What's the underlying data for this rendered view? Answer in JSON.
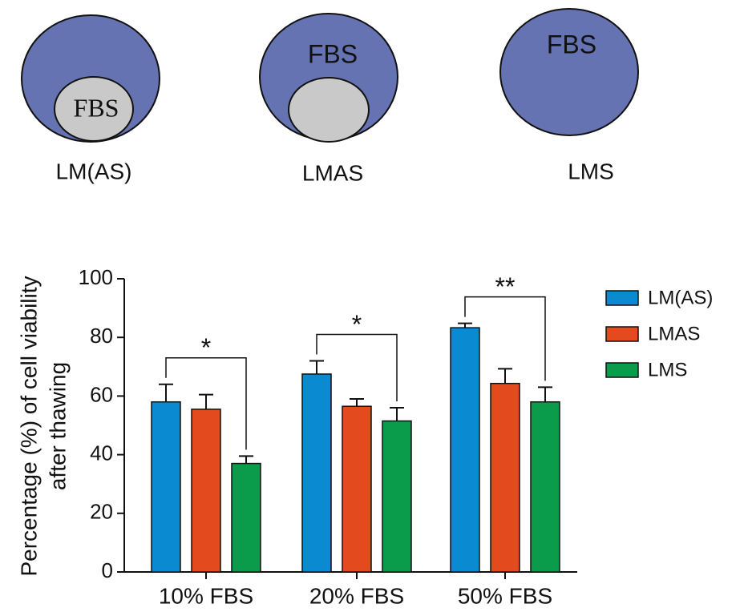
{
  "diagrams": [
    {
      "inner_text": "FBS",
      "label": "LM(AS)"
    },
    {
      "inner_text": "FBS",
      "label": "LMAS"
    },
    {
      "inner_text": "FBS",
      "label": "LMS"
    }
  ],
  "chart_data": {
    "type": "bar",
    "ylabel": [
      "Percentage (%) of cell viability",
      "after thawing"
    ],
    "categories": [
      "10% FBS",
      "20% FBS",
      "50% FBS"
    ],
    "series": [
      {
        "name": "LM(AS)",
        "color": "#0a8ad0",
        "values": [
          58,
          67.5,
          83.3
        ],
        "errors": [
          6,
          4.5,
          1.5
        ]
      },
      {
        "name": "LMAS",
        "color": "#e34a1d",
        "values": [
          55.5,
          56.5,
          64.3
        ],
        "errors": [
          5,
          2.5,
          5
        ]
      },
      {
        "name": "LMS",
        "color": "#0a9c4a",
        "values": [
          37,
          51.5,
          58
        ],
        "errors": [
          2.5,
          4.5,
          5
        ]
      }
    ],
    "significance": [
      {
        "category": 0,
        "from": 0,
        "to": 2,
        "text": "*"
      },
      {
        "category": 1,
        "from": 0,
        "to": 2,
        "text": "*"
      },
      {
        "category": 2,
        "from": 0,
        "to": 2,
        "text": "**"
      }
    ],
    "ylim": [
      0,
      100
    ],
    "yticks": [
      0,
      20,
      40,
      60,
      80,
      100
    ],
    "legend": "right"
  }
}
